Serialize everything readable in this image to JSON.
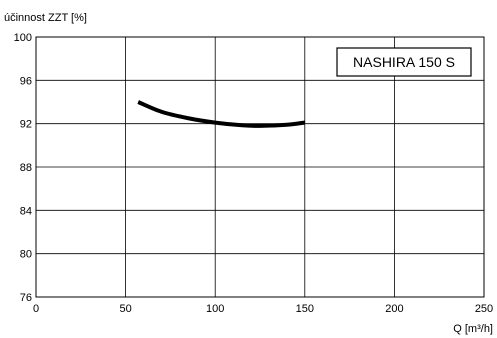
{
  "chart_data": {
    "type": "line",
    "title": "",
    "ylabel": "účinnost ZZT [%]",
    "xlabel": "Q [m³/h]",
    "xlim": [
      0,
      250
    ],
    "ylim": [
      76,
      100
    ],
    "xticks": [
      0,
      50,
      100,
      150,
      200,
      250
    ],
    "yticks": [
      76,
      80,
      84,
      88,
      92,
      96,
      100
    ],
    "grid": true,
    "legend_box": "NASHIRA 150 S",
    "series": [
      {
        "name": "NASHIRA 150 S",
        "color": "#000000",
        "x": [
          57,
          70,
          85,
          100,
          115,
          125,
          140,
          150
        ],
        "y": [
          94.0,
          93.1,
          92.5,
          92.1,
          91.85,
          91.8,
          91.9,
          92.1
        ]
      }
    ]
  }
}
